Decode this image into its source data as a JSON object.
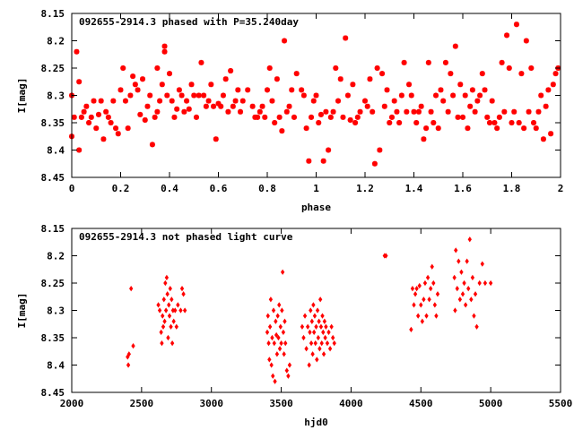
{
  "chart_data": [
    {
      "type": "scatter",
      "title": "092655-2914.3 phased with P=35.240day",
      "xlabel": "phase",
      "ylabel": "I[mag]",
      "xlim": [
        0,
        2
      ],
      "ylim": [
        8.15,
        8.45
      ],
      "y_inverted": true,
      "x_ticks": [
        "0",
        "0.2",
        "0.4",
        "0.6",
        "0.8",
        "1",
        "1.2",
        "1.4",
        "1.6",
        "1.8",
        "2"
      ],
      "y_ticks": [
        "8.15",
        "8.2",
        "8.25",
        "8.3",
        "8.35",
        "8.4",
        "8.45"
      ],
      "marker": "star",
      "color": "#ff0000",
      "points": [
        [
          0.0,
          8.3
        ],
        [
          0.0,
          8.375
        ],
        [
          0.01,
          8.34
        ],
        [
          0.02,
          8.22
        ],
        [
          0.03,
          8.275
        ],
        [
          0.03,
          8.4
        ],
        [
          0.04,
          8.34
        ],
        [
          0.05,
          8.33
        ],
        [
          0.06,
          8.32
        ],
        [
          0.07,
          8.35
        ],
        [
          0.08,
          8.34
        ],
        [
          0.09,
          8.31
        ],
        [
          0.1,
          8.36
        ],
        [
          0.11,
          8.335
        ],
        [
          0.12,
          8.31
        ],
        [
          0.13,
          8.38
        ],
        [
          0.14,
          8.33
        ],
        [
          0.15,
          8.34
        ],
        [
          0.16,
          8.35
        ],
        [
          0.17,
          8.31
        ],
        [
          0.18,
          8.36
        ],
        [
          0.19,
          8.37
        ],
        [
          0.2,
          8.29
        ],
        [
          0.21,
          8.25
        ],
        [
          0.22,
          8.31
        ],
        [
          0.23,
          8.36
        ],
        [
          0.24,
          8.3
        ],
        [
          0.25,
          8.265
        ],
        [
          0.26,
          8.28
        ],
        [
          0.27,
          8.29
        ],
        [
          0.28,
          8.335
        ],
        [
          0.29,
          8.27
        ],
        [
          0.3,
          8.345
        ],
        [
          0.31,
          8.32
        ],
        [
          0.32,
          8.3
        ],
        [
          0.33,
          8.39
        ],
        [
          0.34,
          8.34
        ],
        [
          0.35,
          8.33
        ],
        [
          0.35,
          8.25
        ],
        [
          0.36,
          8.31
        ],
        [
          0.37,
          8.28
        ],
        [
          0.38,
          8.22
        ],
        [
          0.38,
          8.21
        ],
        [
          0.39,
          8.3
        ],
        [
          0.4,
          8.26
        ],
        [
          0.41,
          8.31
        ],
        [
          0.42,
          8.34
        ],
        [
          0.43,
          8.325
        ],
        [
          0.44,
          8.29
        ],
        [
          0.45,
          8.3
        ],
        [
          0.46,
          8.33
        ],
        [
          0.47,
          8.31
        ],
        [
          0.48,
          8.325
        ],
        [
          0.49,
          8.28
        ],
        [
          0.5,
          8.3
        ],
        [
          0.51,
          8.34
        ],
        [
          0.52,
          8.3
        ],
        [
          0.53,
          8.24
        ],
        [
          0.54,
          8.3
        ],
        [
          0.55,
          8.32
        ],
        [
          0.56,
          8.31
        ],
        [
          0.57,
          8.28
        ],
        [
          0.58,
          8.32
        ],
        [
          0.59,
          8.38
        ],
        [
          0.6,
          8.315
        ],
        [
          0.61,
          8.32
        ],
        [
          0.62,
          8.3
        ],
        [
          0.63,
          8.27
        ],
        [
          0.64,
          8.33
        ],
        [
          0.65,
          8.255
        ],
        [
          0.66,
          8.32
        ],
        [
          0.67,
          8.31
        ],
        [
          0.68,
          8.29
        ],
        [
          0.69,
          8.33
        ],
        [
          0.7,
          8.31
        ],
        [
          0.72,
          8.29
        ],
        [
          0.74,
          8.32
        ],
        [
          0.75,
          8.34
        ],
        [
          0.76,
          8.34
        ],
        [
          0.77,
          8.33
        ],
        [
          0.78,
          8.32
        ],
        [
          0.79,
          8.34
        ],
        [
          0.8,
          8.29
        ],
        [
          0.81,
          8.25
        ],
        [
          0.82,
          8.31
        ],
        [
          0.83,
          8.35
        ],
        [
          0.84,
          8.27
        ],
        [
          0.85,
          8.34
        ],
        [
          0.86,
          8.365
        ],
        [
          0.87,
          8.2
        ],
        [
          0.88,
          8.33
        ],
        [
          0.89,
          8.32
        ],
        [
          0.9,
          8.29
        ],
        [
          0.91,
          8.34
        ],
        [
          0.92,
          8.26
        ],
        [
          0.94,
          8.29
        ],
        [
          0.95,
          8.3
        ],
        [
          0.96,
          8.36
        ],
        [
          0.97,
          8.42
        ],
        [
          0.98,
          8.34
        ],
        [
          0.99,
          8.31
        ],
        [
          1.0,
          8.3
        ],
        [
          1.01,
          8.35
        ],
        [
          1.02,
          8.335
        ],
        [
          1.03,
          8.42
        ],
        [
          1.04,
          8.33
        ],
        [
          1.05,
          8.4
        ],
        [
          1.06,
          8.34
        ],
        [
          1.07,
          8.33
        ],
        [
          1.08,
          8.25
        ],
        [
          1.09,
          8.31
        ],
        [
          1.1,
          8.27
        ],
        [
          1.11,
          8.34
        ],
        [
          1.12,
          8.195
        ],
        [
          1.13,
          8.3
        ],
        [
          1.14,
          8.345
        ],
        [
          1.15,
          8.28
        ],
        [
          1.16,
          8.35
        ],
        [
          1.17,
          8.34
        ],
        [
          1.18,
          8.33
        ],
        [
          1.2,
          8.31
        ],
        [
          1.21,
          8.32
        ],
        [
          1.22,
          8.27
        ],
        [
          1.23,
          8.33
        ],
        [
          1.24,
          8.425
        ],
        [
          1.25,
          8.25
        ],
        [
          1.26,
          8.4
        ],
        [
          1.27,
          8.26
        ],
        [
          1.28,
          8.32
        ],
        [
          1.29,
          8.29
        ],
        [
          1.3,
          8.35
        ],
        [
          1.31,
          8.34
        ],
        [
          1.32,
          8.31
        ],
        [
          1.33,
          8.33
        ],
        [
          1.34,
          8.35
        ],
        [
          1.35,
          8.3
        ],
        [
          1.36,
          8.24
        ],
        [
          1.37,
          8.33
        ],
        [
          1.38,
          8.28
        ],
        [
          1.39,
          8.3
        ],
        [
          1.4,
          8.33
        ],
        [
          1.41,
          8.35
        ],
        [
          1.42,
          8.33
        ],
        [
          1.43,
          8.32
        ],
        [
          1.44,
          8.38
        ],
        [
          1.45,
          8.36
        ],
        [
          1.46,
          8.24
        ],
        [
          1.47,
          8.33
        ],
        [
          1.48,
          8.35
        ],
        [
          1.49,
          8.3
        ],
        [
          1.5,
          8.36
        ],
        [
          1.51,
          8.29
        ],
        [
          1.52,
          8.31
        ],
        [
          1.53,
          8.24
        ],
        [
          1.54,
          8.33
        ],
        [
          1.55,
          8.26
        ],
        [
          1.56,
          8.3
        ],
        [
          1.57,
          8.21
        ],
        [
          1.58,
          8.34
        ],
        [
          1.59,
          8.28
        ],
        [
          1.6,
          8.34
        ],
        [
          1.61,
          8.3
        ],
        [
          1.62,
          8.36
        ],
        [
          1.63,
          8.32
        ],
        [
          1.64,
          8.29
        ],
        [
          1.65,
          8.33
        ],
        [
          1.66,
          8.31
        ],
        [
          1.67,
          8.3
        ],
        [
          1.68,
          8.26
        ],
        [
          1.69,
          8.29
        ],
        [
          1.7,
          8.34
        ],
        [
          1.71,
          8.35
        ],
        [
          1.72,
          8.31
        ],
        [
          1.73,
          8.35
        ],
        [
          1.74,
          8.36
        ],
        [
          1.75,
          8.34
        ],
        [
          1.76,
          8.24
        ],
        [
          1.77,
          8.33
        ],
        [
          1.78,
          8.19
        ],
        [
          1.79,
          8.25
        ],
        [
          1.8,
          8.35
        ],
        [
          1.81,
          8.33
        ],
        [
          1.82,
          8.17
        ],
        [
          1.83,
          8.35
        ],
        [
          1.84,
          8.26
        ],
        [
          1.85,
          8.36
        ],
        [
          1.86,
          8.2
        ],
        [
          1.87,
          8.33
        ],
        [
          1.88,
          8.25
        ],
        [
          1.89,
          8.35
        ],
        [
          1.9,
          8.36
        ],
        [
          1.91,
          8.33
        ],
        [
          1.92,
          8.3
        ],
        [
          1.93,
          8.38
        ],
        [
          1.94,
          8.32
        ],
        [
          1.95,
          8.29
        ],
        [
          1.96,
          8.37
        ],
        [
          1.97,
          8.28
        ],
        [
          1.98,
          8.26
        ],
        [
          1.99,
          8.25
        ]
      ]
    },
    {
      "type": "scatter",
      "title": "092655-2914.3 not phased light curve",
      "xlabel": "hjd0",
      "ylabel": "I[mag]",
      "xlim": [
        2000,
        5500
      ],
      "ylim": [
        8.15,
        8.45
      ],
      "y_inverted": true,
      "x_ticks": [
        "2000",
        "2500",
        "3000",
        "3500",
        "4000",
        "4500",
        "5000",
        "5500"
      ],
      "y_ticks": [
        "8.15",
        "8.2",
        "8.25",
        "8.3",
        "8.35",
        "8.4",
        "8.45"
      ],
      "marker": "diamond",
      "color": "#ff0000",
      "points": [
        [
          2400,
          8.385
        ],
        [
          2405,
          8.4
        ],
        [
          2410,
          8.38
        ],
        [
          2425,
          8.26
        ],
        [
          2440,
          8.365
        ],
        [
          2620,
          8.29
        ],
        [
          2630,
          8.3
        ],
        [
          2640,
          8.34
        ],
        [
          2645,
          8.36
        ],
        [
          2650,
          8.31
        ],
        [
          2655,
          8.33
        ],
        [
          2660,
          8.28
        ],
        [
          2665,
          8.32
        ],
        [
          2670,
          8.25
        ],
        [
          2675,
          8.3
        ],
        [
          2680,
          8.24
        ],
        [
          2685,
          8.27
        ],
        [
          2690,
          8.35
        ],
        [
          2695,
          8.29
        ],
        [
          2700,
          8.31
        ],
        [
          2705,
          8.26
        ],
        [
          2710,
          8.33
        ],
        [
          2715,
          8.28
        ],
        [
          2720,
          8.36
        ],
        [
          2725,
          8.3
        ],
        [
          2730,
          8.32
        ],
        [
          2740,
          8.3
        ],
        [
          2750,
          8.33
        ],
        [
          2760,
          8.29
        ],
        [
          2780,
          8.3
        ],
        [
          2790,
          8.26
        ],
        [
          2800,
          8.27
        ],
        [
          2810,
          8.3
        ],
        [
          3400,
          8.34
        ],
        [
          3405,
          8.31
        ],
        [
          3410,
          8.36
        ],
        [
          3415,
          8.39
        ],
        [
          3420,
          8.33
        ],
        [
          3425,
          8.28
        ],
        [
          3430,
          8.4
        ],
        [
          3435,
          8.35
        ],
        [
          3440,
          8.42
        ],
        [
          3445,
          8.3
        ],
        [
          3450,
          8.36
        ],
        [
          3455,
          8.43
        ],
        [
          3460,
          8.32
        ],
        [
          3465,
          8.345
        ],
        [
          3470,
          8.38
        ],
        [
          3475,
          8.31
        ],
        [
          3480,
          8.35
        ],
        [
          3485,
          8.29
        ],
        [
          3490,
          8.37
        ],
        [
          3495,
          8.33
        ],
        [
          3500,
          8.36
        ],
        [
          3505,
          8.3
        ],
        [
          3510,
          8.23
        ],
        [
          3515,
          8.34
        ],
        [
          3520,
          8.38
        ],
        [
          3525,
          8.32
        ],
        [
          3530,
          8.36
        ],
        [
          3540,
          8.41
        ],
        [
          3550,
          8.42
        ],
        [
          3560,
          8.4
        ],
        [
          3650,
          8.33
        ],
        [
          3660,
          8.35
        ],
        [
          3670,
          8.31
        ],
        [
          3680,
          8.37
        ],
        [
          3690,
          8.33
        ],
        [
          3700,
          8.4
        ],
        [
          3705,
          8.34
        ],
        [
          3710,
          8.3
        ],
        [
          3715,
          8.36
        ],
        [
          3720,
          8.32
        ],
        [
          3725,
          8.38
        ],
        [
          3730,
          8.29
        ],
        [
          3735,
          8.34
        ],
        [
          3740,
          8.31
        ],
        [
          3745,
          8.36
        ],
        [
          3750,
          8.33
        ],
        [
          3755,
          8.39
        ],
        [
          3760,
          8.3
        ],
        [
          3765,
          8.35
        ],
        [
          3770,
          8.32
        ],
        [
          3775,
          8.37
        ],
        [
          3780,
          8.28
        ],
        [
          3785,
          8.33
        ],
        [
          3790,
          8.36
        ],
        [
          3795,
          8.31
        ],
        [
          3800,
          8.34
        ],
        [
          3805,
          8.38
        ],
        [
          3810,
          8.32
        ],
        [
          3815,
          8.35
        ],
        [
          3820,
          8.33
        ],
        [
          3830,
          8.36
        ],
        [
          3840,
          8.34
        ],
        [
          3850,
          8.37
        ],
        [
          3860,
          8.33
        ],
        [
          3870,
          8.35
        ],
        [
          3880,
          8.36
        ],
        [
          4240,
          8.2
        ],
        [
          4250,
          8.2
        ],
        [
          4430,
          8.335
        ],
        [
          4440,
          8.26
        ],
        [
          4450,
          8.29
        ],
        [
          4460,
          8.27
        ],
        [
          4470,
          8.26
        ],
        [
          4480,
          8.31
        ],
        [
          4490,
          8.255
        ],
        [
          4500,
          8.29
        ],
        [
          4510,
          8.32
        ],
        [
          4520,
          8.28
        ],
        [
          4530,
          8.25
        ],
        [
          4540,
          8.31
        ],
        [
          4550,
          8.24
        ],
        [
          4560,
          8.28
        ],
        [
          4570,
          8.26
        ],
        [
          4580,
          8.22
        ],
        [
          4590,
          8.25
        ],
        [
          4600,
          8.29
        ],
        [
          4610,
          8.31
        ],
        [
          4620,
          8.27
        ],
        [
          4740,
          8.24
        ],
        [
          4745,
          8.3
        ],
        [
          4750,
          8.19
        ],
        [
          4760,
          8.26
        ],
        [
          4770,
          8.21
        ],
        [
          4780,
          8.28
        ],
        [
          4790,
          8.23
        ],
        [
          4800,
          8.27
        ],
        [
          4810,
          8.25
        ],
        [
          4820,
          8.29
        ],
        [
          4830,
          8.21
        ],
        [
          4840,
          8.26
        ],
        [
          4850,
          8.17
        ],
        [
          4860,
          8.28
        ],
        [
          4870,
          8.24
        ],
        [
          4880,
          8.31
        ],
        [
          4890,
          8.27
        ],
        [
          4900,
          8.33
        ],
        [
          4920,
          8.25
        ],
        [
          4940,
          8.215
        ],
        [
          4960,
          8.25
        ],
        [
          5000,
          8.25
        ]
      ]
    }
  ]
}
